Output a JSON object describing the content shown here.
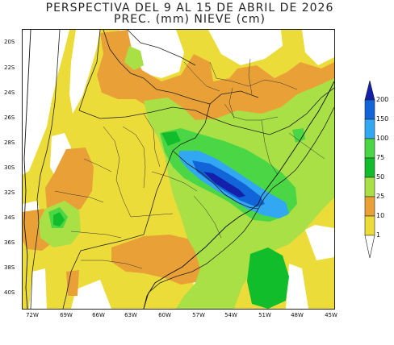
{
  "title": {
    "line1": "PERSPECTIVA DEL 9 AL 15 DE ABRIL DE 2026",
    "line2": "PREC. (mm) NIEVE (cm)"
  },
  "latitude_labels": [
    "20S",
    "22S",
    "24S",
    "26S",
    "28S",
    "30S",
    "32S",
    "34S",
    "36S",
    "38S",
    "40S"
  ],
  "longitude_labels": [
    "72W",
    "69W",
    "66W",
    "63W",
    "60W",
    "57W",
    "54W",
    "51W",
    "48W",
    "45W"
  ],
  "legend": {
    "levels": [
      "200",
      "150",
      "100",
      "75",
      "50",
      "25",
      "10",
      "1"
    ],
    "colors": {
      "c1": "#ecdc3a",
      "c10": "#e9a137",
      "c25": "#a8e046",
      "c50": "#4bd646",
      "c75": "#12bd2c",
      "c100": "#33a8f2",
      "c150": "#1165d8",
      "c200": "#141faa",
      "none": "#ffffff"
    }
  }
}
